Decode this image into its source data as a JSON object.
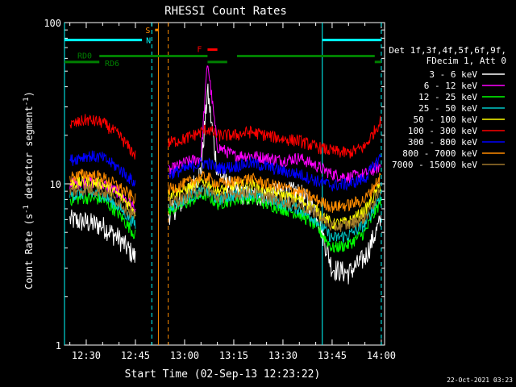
{
  "chart_data": {
    "type": "line",
    "title": "RHESSI Count Rates",
    "xlabel": "Start Time (02-Sep-13 12:23:22)",
    "ylabel": "Count Rate (s",
    "ylabel_sup": "-1",
    "ylabel_mid": " detector segment",
    "ylabel_sup2": "-1",
    "ylabel_end": ")",
    "x_range": [
      "12:23:22",
      "14:01:00"
    ],
    "y_range": [
      1,
      100
    ],
    "y_scale": "log",
    "x_ticks": [
      "12:30",
      "12:45",
      "13:00",
      "13:15",
      "13:30",
      "13:45",
      "14:00"
    ],
    "y_ticks": [
      "1",
      "10",
      "100"
    ],
    "legend_header": [
      "Det 1f,3f,4f,5f,6f,9f,",
      "FDecim 1, Att 0"
    ],
    "legend_placement": "right",
    "x": [
      "12:25",
      "12:30",
      "12:35",
      "12:40",
      "12:45",
      "12:50",
      "12:55",
      "13:00",
      "13:05",
      "13:07",
      "13:10",
      "13:15",
      "13:20",
      "13:25",
      "13:30",
      "13:35",
      "13:40",
      "13:45",
      "13:50",
      "13:55",
      "14:00"
    ],
    "series": [
      {
        "name": "3 - 6 keV",
        "color": "#ffffff",
        "values": [
          6,
          5.8,
          5.5,
          4.6,
          3.5,
          null,
          6.5,
          8,
          12,
          38,
          12,
          9,
          8.5,
          8.5,
          9,
          8.8,
          7,
          3,
          2.8,
          3.5,
          6
        ]
      },
      {
        "name": "6 - 12 keV",
        "color": "#ff00ff",
        "values": [
          10,
          10.3,
          10,
          8.8,
          7,
          null,
          12,
          13.5,
          14.5,
          58,
          17,
          15,
          15,
          14.5,
          14,
          14.5,
          13,
          11.5,
          11,
          11.5,
          13
        ]
      },
      {
        "name": "12 - 25 keV",
        "color": "#00ff00",
        "values": [
          8,
          8.2,
          8,
          6.5,
          4.8,
          null,
          6.8,
          7.5,
          8.5,
          8.5,
          7.5,
          8,
          8.2,
          7.5,
          7,
          6.5,
          5.5,
          4,
          4.2,
          5,
          8
        ]
      },
      {
        "name": "25 - 50 keV",
        "color": "#00c8c8",
        "values": [
          8.5,
          8.8,
          8.5,
          7.2,
          5.6,
          null,
          7.2,
          8,
          9,
          9,
          8,
          8.5,
          8.8,
          8,
          7.5,
          7,
          6,
          4.6,
          4.8,
          5.6,
          8.8
        ]
      },
      {
        "name": "50 - 100 keV",
        "color": "#ffff00",
        "values": [
          10,
          10.3,
          10,
          8.5,
          6.8,
          null,
          8.5,
          9.2,
          10.3,
          10.3,
          9,
          9.6,
          10,
          9,
          8.5,
          8,
          7,
          5.6,
          5.8,
          6.8,
          10
        ]
      },
      {
        "name": "100 - 300 keV",
        "color": "#ff0000",
        "values": [
          23,
          25,
          24,
          20,
          15,
          null,
          18,
          19,
          21,
          22,
          20,
          20,
          21,
          20,
          19,
          18.5,
          17,
          16,
          15.5,
          17,
          25
        ]
      },
      {
        "name": "300 - 800 keV",
        "color": "#0000ff",
        "values": [
          14,
          15,
          14.5,
          12.5,
          10,
          null,
          11.5,
          12.3,
          13.5,
          13.5,
          12.5,
          12.8,
          13.5,
          12.8,
          12,
          11.5,
          10.5,
          9.8,
          10,
          10.8,
          15
        ]
      },
      {
        "name": "800 - 7000 keV",
        "color": "#ff8c00",
        "values": [
          11,
          11.5,
          11,
          9.6,
          8,
          null,
          9.2,
          10,
          11,
          11,
          10,
          10.3,
          10.8,
          10,
          9.5,
          9,
          8,
          7.2,
          7.4,
          8,
          11.3
        ]
      },
      {
        "name": "7000 - 15000 keV",
        "color": "#a0782d",
        "values": [
          9,
          9.3,
          9,
          7.8,
          6.2,
          null,
          7.6,
          8.2,
          9.2,
          9.2,
          8.2,
          8.6,
          9,
          8.3,
          7.8,
          7.4,
          6.6,
          5.4,
          5.6,
          6.2,
          9.2
        ]
      }
    ],
    "annotations": {
      "night": {
        "label": "N",
        "color": "#00ffff",
        "intervals": [
          [
            "12:23:22",
            "12:47"
          ],
          [
            "13:42",
            "14:00"
          ]
        ],
        "level": 78
      },
      "saa": {
        "label": "S",
        "color": "#ff8c00",
        "intervals": [
          [
            "12:51",
            "12:52"
          ]
        ],
        "level": 90
      },
      "flare": {
        "label": "F",
        "color": "#ff0000",
        "intervals": [
          [
            "13:07",
            "13:10"
          ]
        ],
        "level": 68
      },
      "rd0": {
        "label": "RD0",
        "color": "#008000",
        "intervals": [
          [
            "12:34",
            "13:07"
          ],
          [
            "13:16",
            "13:58"
          ]
        ],
        "level": 62
      },
      "rd6": {
        "label": "RD6",
        "color": "#008000",
        "intervals": [
          [
            "12:23:22",
            "12:34"
          ],
          [
            "13:07",
            "13:13"
          ],
          [
            "13:58",
            "14:00"
          ]
        ],
        "level": 57
      }
    },
    "vlines": [
      {
        "at": "12:23:22",
        "color": "#00ffff",
        "style": "solid"
      },
      {
        "at": "12:50",
        "color": "#00ffff",
        "style": "dashed"
      },
      {
        "at": "12:52",
        "color": "#ff8c00",
        "style": "solid"
      },
      {
        "at": "12:55",
        "color": "#ff8c00",
        "style": "dashed"
      },
      {
        "at": "13:42",
        "color": "#00ffff",
        "style": "solid"
      },
      {
        "at": "14:00",
        "color": "#00ffff",
        "style": "dashed"
      }
    ],
    "footer": "22-Oct-2021 03:23"
  }
}
